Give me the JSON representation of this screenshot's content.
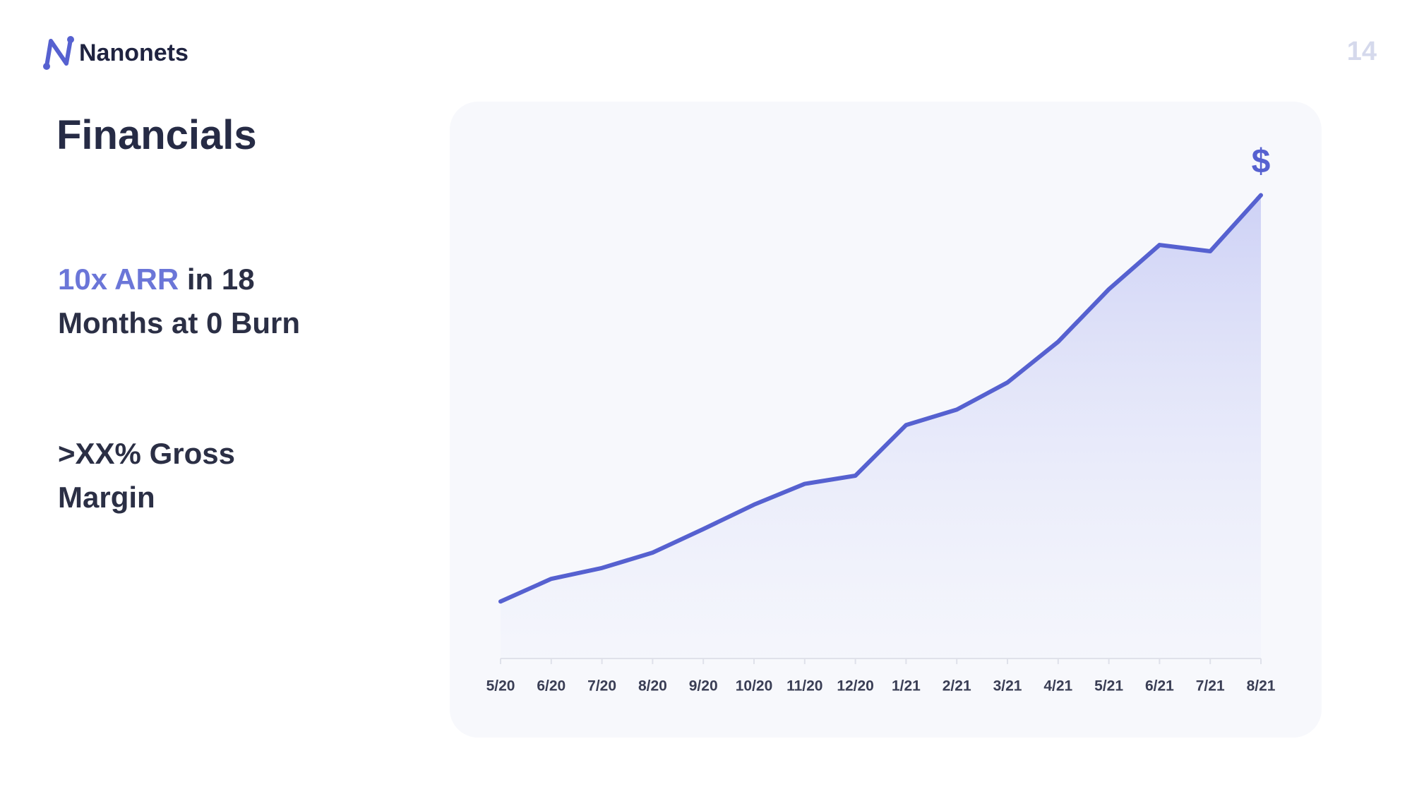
{
  "header": {
    "logo": "Nanonets",
    "page_number": "14"
  },
  "title": "Financials",
  "points": [
    {
      "highlight": "10x ARR",
      "lines": [
        "in 18",
        "Months at 0 Burn"
      ]
    },
    {
      "lines": [
        ">XX% Gross",
        "Margin"
      ]
    }
  ],
  "chart_data": {
    "type": "line",
    "fill": true,
    "categories": [
      "5/20",
      "6/20",
      "7/20",
      "8/20",
      "9/20",
      "10/20",
      "11/20",
      "12/20",
      "1/21",
      "2/21",
      "3/21",
      "4/21",
      "5/21",
      "6/21",
      "7/21",
      "8/21"
    ],
    "values": [
      63,
      88,
      100,
      117,
      143,
      170,
      193,
      202,
      258,
      275,
      305,
      350,
      408,
      457,
      450,
      512
    ],
    "color": "#5661d0",
    "ylim": [
      0,
      560
    ],
    "annotation": "$"
  }
}
